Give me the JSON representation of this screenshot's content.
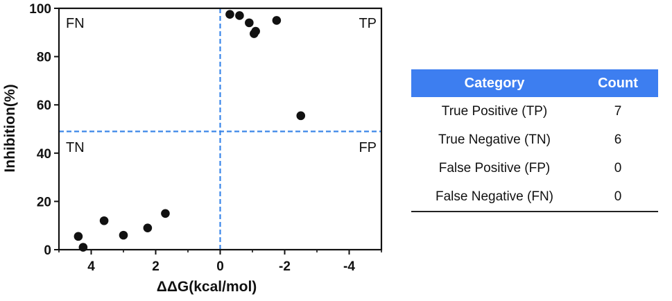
{
  "chart_data": {
    "type": "scatter",
    "title": "",
    "xlabel": "ΔΔG(kcal/mol)",
    "ylabel": "Inhibition(%)",
    "xlim": [
      5,
      -5
    ],
    "ylim": [
      0,
      100
    ],
    "x_reversed": true,
    "xticks": [
      4,
      2,
      0,
      -2,
      -4
    ],
    "xtick_labels": [
      "4",
      "2",
      "0",
      "-2",
      "-4"
    ],
    "yticks": [
      0,
      20,
      40,
      60,
      80,
      100
    ],
    "ytick_labels": [
      "0",
      "20",
      "40",
      "60",
      "80",
      "100"
    ],
    "reference_lines": {
      "x": 0,
      "y": 49
    },
    "quadrant_labels": {
      "top_left": "FN",
      "top_right": "TP",
      "bottom_left": "TN",
      "bottom_right": "FP"
    },
    "marker_color": "#111111",
    "reference_line_color": "#3a86e8",
    "points": [
      {
        "x": -0.3,
        "y": 97.5
      },
      {
        "x": -0.6,
        "y": 97
      },
      {
        "x": -0.9,
        "y": 94
      },
      {
        "x": -1.05,
        "y": 89.5
      },
      {
        "x": -1.1,
        "y": 90.5
      },
      {
        "x": -1.75,
        "y": 95
      },
      {
        "x": -2.5,
        "y": 55.5
      },
      {
        "x": 4.4,
        "y": 5.5
      },
      {
        "x": 4.25,
        "y": 1
      },
      {
        "x": 3.6,
        "y": 12
      },
      {
        "x": 3.0,
        "y": 6
      },
      {
        "x": 2.25,
        "y": 9
      },
      {
        "x": 1.7,
        "y": 15
      }
    ]
  },
  "table": {
    "headers": [
      "Category",
      "Count"
    ],
    "rows": [
      [
        "True Positive (TP)",
        "7"
      ],
      [
        "True Negative (TN)",
        "6"
      ],
      [
        "False Positive (FP)",
        "0"
      ],
      [
        "False Negative (FN)",
        "0"
      ]
    ],
    "header_color": "#3d7ef0"
  }
}
